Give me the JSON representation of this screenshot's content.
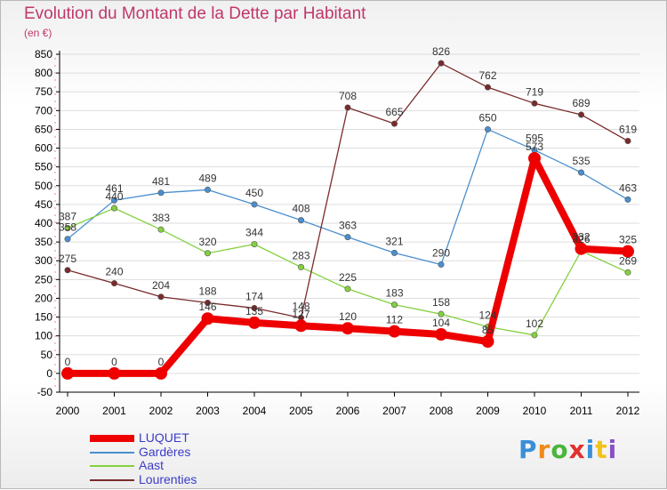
{
  "title": "Evolution du Montant de la Dette par Habitant",
  "subtitle": "(en €)",
  "logo_text": "Proxiti",
  "colors": {
    "title": "#c0376b",
    "axis": "#000000",
    "grid": "#dddddd",
    "legend_text": "#3b3bc8"
  },
  "chart_data": {
    "type": "line",
    "title": "Evolution du Montant de la Dette par Habitant",
    "subtitle": "(en €)",
    "xlabel": "",
    "ylabel": "",
    "x": [
      "2000",
      "2001",
      "2002",
      "2003",
      "2004",
      "2005",
      "2006",
      "2007",
      "2008",
      "2009",
      "2010",
      "2011",
      "2012"
    ],
    "ylim": [
      -50,
      850
    ],
    "yticks": [
      -50,
      0,
      50,
      100,
      150,
      200,
      250,
      300,
      350,
      400,
      450,
      500,
      550,
      600,
      650,
      700,
      750,
      800,
      850
    ],
    "grid": "horizontal",
    "legend_position": "bottom-left",
    "series": [
      {
        "name": "LUQUET",
        "color": "#ee0000",
        "emphasis": true,
        "values": [
          0,
          0,
          0,
          146,
          135,
          127,
          120,
          112,
          104,
          85,
          573,
          332,
          325
        ]
      },
      {
        "name": "Gardères",
        "color": "#4a8fcf",
        "emphasis": false,
        "values": [
          358,
          461,
          481,
          489,
          450,
          408,
          363,
          321,
          290,
          650,
          595,
          535,
          463
        ]
      },
      {
        "name": "Aast",
        "color": "#84d13e",
        "emphasis": false,
        "values": [
          387,
          440,
          383,
          320,
          344,
          283,
          225,
          183,
          158,
          124,
          102,
          326,
          269
        ]
      },
      {
        "name": "Lourenties",
        "color": "#7a2a2a",
        "emphasis": false,
        "values": [
          275,
          240,
          204,
          188,
          174,
          148,
          708,
          665,
          826,
          762,
          719,
          689,
          619
        ]
      }
    ]
  }
}
